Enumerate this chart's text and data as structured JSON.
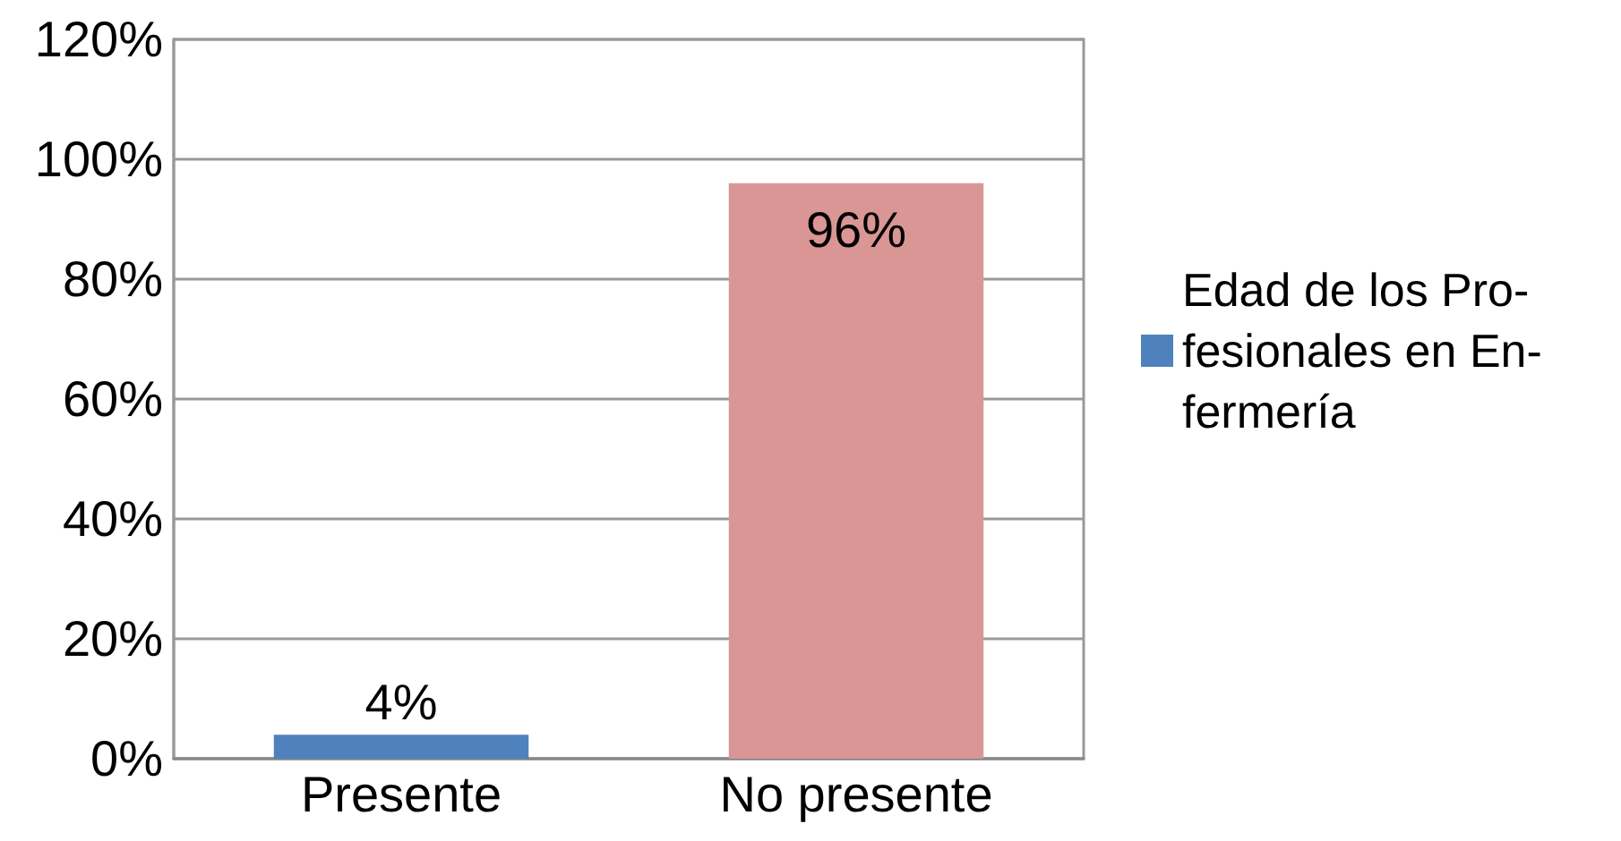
{
  "chart_data": {
    "type": "bar",
    "categories": [
      "Presente",
      "No presente"
    ],
    "series": [
      {
        "name": "Edad de los Pro-fesionales en En-fermería",
        "color": "#4f81bd",
        "colors": [
          "#4f81bd",
          "#d99694"
        ],
        "values": [
          4,
          96
        ],
        "value_labels": [
          "4%",
          "96%"
        ]
      }
    ],
    "ylim": [
      0,
      120
    ],
    "yticks": [
      {
        "value": 0,
        "label": "0%"
      },
      {
        "value": 20,
        "label": "20%"
      },
      {
        "value": 40,
        "label": "40%"
      },
      {
        "value": 60,
        "label": "60%"
      },
      {
        "value": 80,
        "label": "80%"
      },
      {
        "value": 100,
        "label": "100%"
      },
      {
        "value": 120,
        "label": "120%"
      }
    ],
    "grid": "y",
    "legend": "right"
  }
}
